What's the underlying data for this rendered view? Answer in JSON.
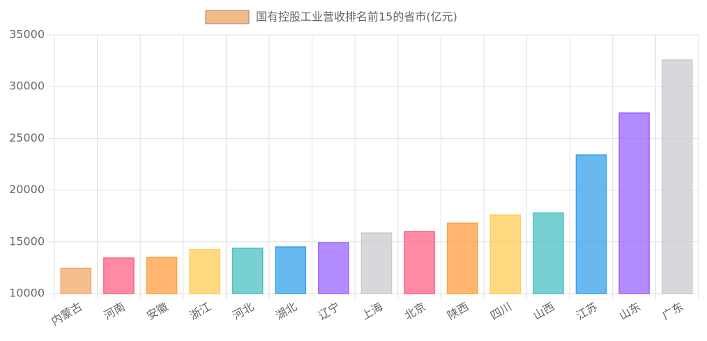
{
  "chart_data": {
    "type": "bar",
    "categories": [
      "内蒙古",
      "河南",
      "安徽",
      "浙江",
      "河北",
      "湖北",
      "辽宁",
      "上海",
      "北京",
      "陕西",
      "四川",
      "山西",
      "江苏",
      "山东",
      "广东"
    ],
    "series": [
      {
        "name": "国有控股工业营收排名前15的省市(亿元)",
        "colors": [
          "#f0a868",
          "#ff6384",
          "#ff9f40",
          "#ffcd56",
          "#4bc0c0",
          "#36a2eb",
          "#9966ff",
          "#c9cbcf",
          "#ff6384",
          "#ff9f40",
          "#ffcd56",
          "#4bc0c0",
          "#36a2eb",
          "#9966ff",
          "#c9cbcf"
        ],
        "values": [
          12450,
          13440,
          13500,
          14250,
          14380,
          14510,
          14920,
          15860,
          16000,
          16800,
          17600,
          17800,
          23400,
          27450,
          32570
        ]
      }
    ],
    "ylim": [
      10000,
      35000
    ],
    "yticks": [
      10000,
      15000,
      20000,
      25000,
      30000,
      35000
    ],
    "grid": true
  }
}
